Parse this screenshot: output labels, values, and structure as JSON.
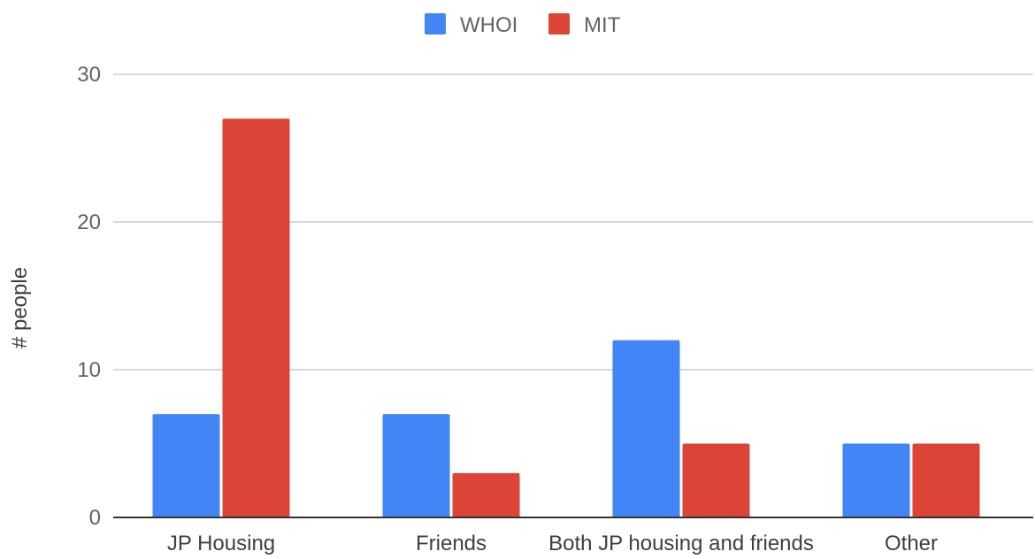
{
  "chart_data": {
    "type": "bar",
    "title": "",
    "xlabel": "",
    "ylabel": "# people",
    "ylim": [
      0,
      30
    ],
    "yticks": [
      0,
      10,
      20,
      30
    ],
    "grid": true,
    "legend_position": "top",
    "categories": [
      "JP Housing",
      "Friends",
      "Both JP housing and friends",
      "Other"
    ],
    "series": [
      {
        "name": "WHOI",
        "color": "#4285f4",
        "values": [
          7,
          7,
          12,
          5
        ]
      },
      {
        "name": "MIT",
        "color": "#db4437",
        "values": [
          27,
          3,
          5,
          5
        ]
      }
    ]
  }
}
